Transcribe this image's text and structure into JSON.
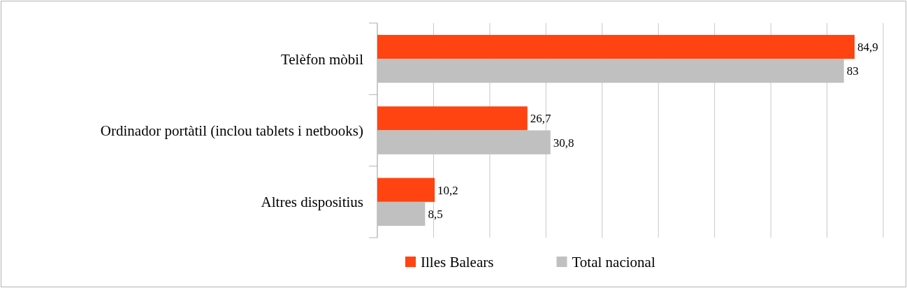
{
  "chart_data": {
    "type": "bar",
    "orientation": "horizontal",
    "categories": [
      "Telèfon mòbil",
      "Ordinador portàtil (inclou tablets i netbooks)",
      "Altres dispositius"
    ],
    "series": [
      {
        "name": "Illes Balears",
        "color": "#ff4411",
        "values": [
          84.9,
          26.7,
          10.2
        ],
        "value_labels": [
          "84,9",
          "26,7",
          "10,2"
        ]
      },
      {
        "name": "Total nacional",
        "color": "#c0c0c0",
        "values": [
          83,
          30.8,
          8.5
        ],
        "value_labels": [
          "83",
          "30,8",
          "8,5"
        ]
      }
    ],
    "xlim": [
      0,
      90
    ],
    "xticks": [
      {
        "value": 0,
        "label": null
      },
      {
        "value": 10,
        "label": null
      },
      {
        "value": 20,
        "label": null
      },
      {
        "value": 30,
        "label": null
      },
      {
        "value": 40,
        "label": null
      },
      {
        "value": 50,
        "label": null
      },
      {
        "value": 60,
        "label": null
      },
      {
        "value": 70,
        "label": null
      },
      {
        "value": 80,
        "label": null
      },
      {
        "value": 90,
        "label": null
      }
    ],
    "tick_labels": "y",
    "grid": "x",
    "legend": "bottom"
  }
}
